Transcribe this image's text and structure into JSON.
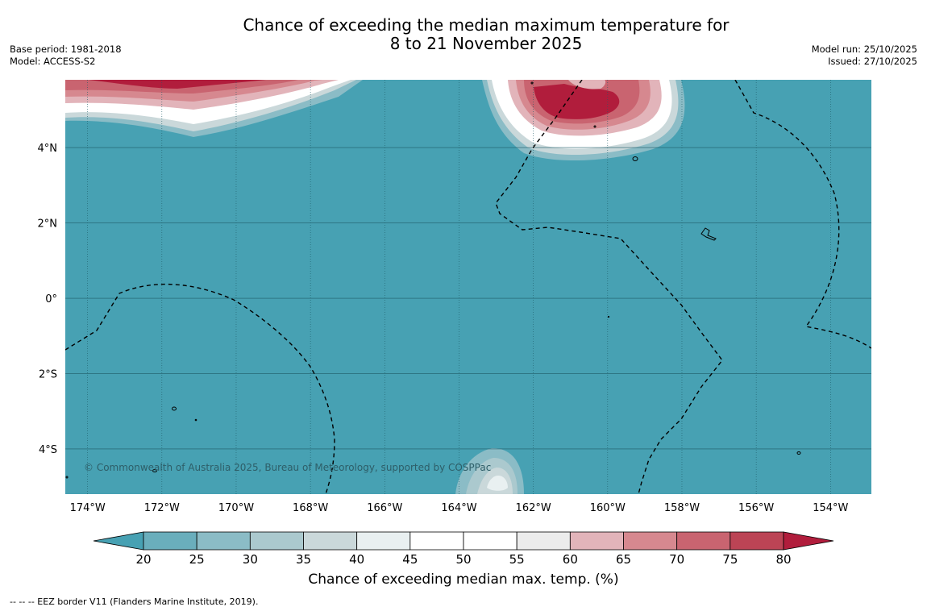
{
  "title_line1": "Chance of exceeding the median maximum temperature for",
  "title_line2": "8 to 21 November 2025",
  "meta_left": {
    "base_period": "Base period: 1981-2018",
    "model": "Model: ACCESS-S2"
  },
  "meta_right": {
    "model_run": "Model run: 25/10/2025",
    "issued": "Issued: 27/10/2025"
  },
  "map": {
    "lon_range": [
      -174.6,
      -152.9
    ],
    "lat_range": [
      -5.2,
      5.8
    ],
    "lon_ticks": [
      {
        "value": -174,
        "label": "174°W"
      },
      {
        "value": -172,
        "label": "172°W"
      },
      {
        "value": -170,
        "label": "170°W"
      },
      {
        "value": -168,
        "label": "168°W"
      },
      {
        "value": -166,
        "label": "166°W"
      },
      {
        "value": -164,
        "label": "164°W"
      },
      {
        "value": -162,
        "label": "162°W"
      },
      {
        "value": -160,
        "label": "160°W"
      },
      {
        "value": -158,
        "label": "158°W"
      },
      {
        "value": -156,
        "label": "156°W"
      },
      {
        "value": -154,
        "label": "154°W"
      }
    ],
    "lat_ticks": [
      {
        "value": 4,
        "label": "4°N"
      },
      {
        "value": 2,
        "label": "2°N"
      },
      {
        "value": 0,
        "label": "0°"
      },
      {
        "value": -2,
        "label": "2°S"
      },
      {
        "value": -4,
        "label": "4°S"
      }
    ],
    "copyright": "© Commonwealth of Australia 2025, Bureau of Meteorology, supported by COSPPac",
    "background_color": "#47a1b3"
  },
  "colorbar": {
    "title": "Chance of exceeding median max. temp. (%)",
    "ticks": [
      "20",
      "25",
      "30",
      "35",
      "40",
      "45",
      "50",
      "55",
      "60",
      "65",
      "70",
      "75",
      "80"
    ],
    "colors": [
      "#6aaebc",
      "#8bbcc6",
      "#abc9ce",
      "#cad8da",
      "#e9f0f1",
      "#ffffff",
      "#ffffff",
      "#ececec",
      "#e2b4ba",
      "#d6888f",
      "#c96470",
      "#bc4455"
    ],
    "under_color": "#47a1b3",
    "over_color": "#b11d3c"
  },
  "footnote": "-- -- -- EEZ border V11 (Flanders Marine Institute, 2019)."
}
